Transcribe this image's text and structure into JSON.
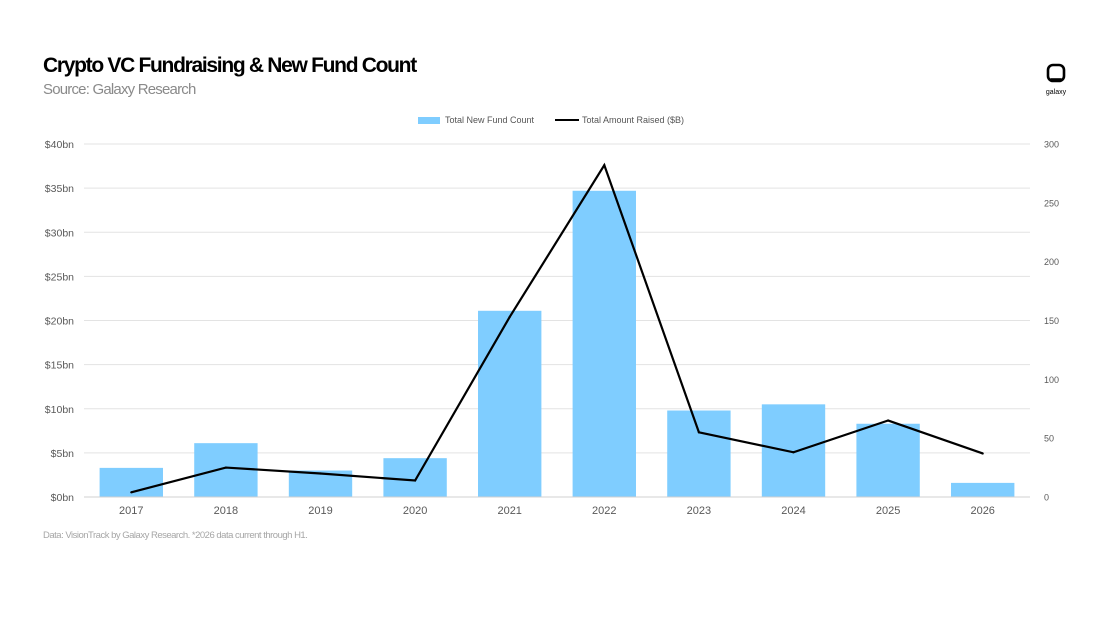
{
  "title": "Crypto VC Fundraising & New Fund Count",
  "subtitle": "Source: Galaxy Research",
  "logo": {
    "text": "galaxy",
    "icon": "galaxy-logo-icon"
  },
  "footnote": "Data: VisionTrack by Galaxy Research. *2026 data current through H1.",
  "colors": {
    "bar": "#7fcdff",
    "line": "#000000",
    "grid": "#e3e3e3",
    "axis_text": "#595959"
  },
  "chart_data": {
    "type": "bar",
    "categories": [
      "2017",
      "2018",
      "2019",
      "2020",
      "2021",
      "2022",
      "2023",
      "2024",
      "2025",
      "2026"
    ],
    "series": [
      {
        "name": "Total New Fund Count",
        "type": "bar",
        "axis": "left",
        "values": [
          3.3,
          6.1,
          3.0,
          4.4,
          21.1,
          34.7,
          9.8,
          10.5,
          8.3,
          1.6
        ]
      },
      {
        "name": "Total Amount Raised ($B)",
        "type": "line",
        "axis": "right",
        "values": [
          4,
          25,
          20,
          14,
          153,
          282,
          55,
          38,
          65,
          37
        ]
      }
    ],
    "y_left": {
      "min": 0,
      "max": 40,
      "ticks": [
        "$0bn",
        "$5bn",
        "$10bn",
        "$15bn",
        "$20bn",
        "$25bn",
        "$30bn",
        "$35bn",
        "$40bn"
      ]
    },
    "y_right": {
      "min": 0,
      "max": 300,
      "ticks": [
        "0",
        "50",
        "100",
        "150",
        "200",
        "250",
        "300"
      ]
    },
    "grid": true,
    "legend_position": "top-center"
  }
}
